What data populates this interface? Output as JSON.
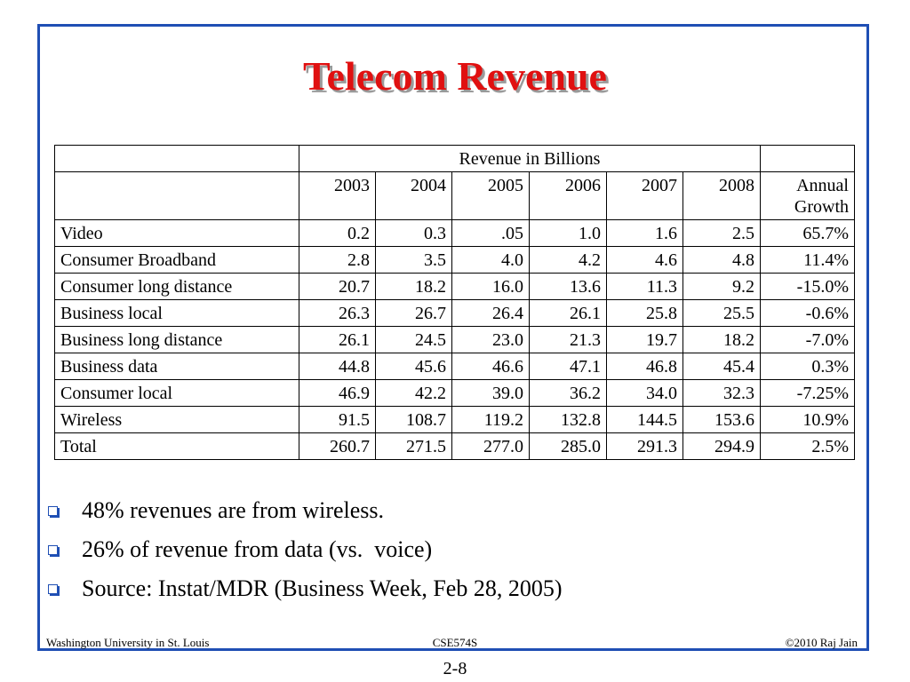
{
  "slide": {
    "title": "Telecom Revenue"
  },
  "table": {
    "group_header": "Revenue in Billions",
    "years": [
      "2003",
      "2004",
      "2005",
      "2006",
      "2007",
      "2008"
    ],
    "growth_header_line1": "Annual",
    "growth_header_line2": "Growth",
    "rows": [
      {
        "label": "Video",
        "values": [
          "0.2",
          "0.3",
          ".05",
          "1.0",
          "1.6",
          "2.5"
        ],
        "growth": "65.7%"
      },
      {
        "label": "Consumer Broadband",
        "values": [
          "2.8",
          "3.5",
          "4.0",
          "4.2",
          "4.6",
          "4.8"
        ],
        "growth": "11.4%"
      },
      {
        "label": "Consumer long distance",
        "values": [
          "20.7",
          "18.2",
          "16.0",
          "13.6",
          "11.3",
          "9.2"
        ],
        "growth": "-15.0%"
      },
      {
        "label": "Business local",
        "values": [
          "26.3",
          "26.7",
          "26.4",
          "26.1",
          "25.8",
          "25.5"
        ],
        "growth": "-0.6%"
      },
      {
        "label": "Business long distance",
        "values": [
          "26.1",
          "24.5",
          "23.0",
          "21.3",
          "19.7",
          "18.2"
        ],
        "growth": "-7.0%"
      },
      {
        "label": "Business data",
        "values": [
          "44.8",
          "45.6",
          "46.6",
          "47.1",
          "46.8",
          "45.4"
        ],
        "growth": "0.3%"
      },
      {
        "label": "Consumer local",
        "values": [
          "46.9",
          "42.2",
          "39.0",
          "36.2",
          "34.0",
          "32.3"
        ],
        "growth": "-7.25%"
      },
      {
        "label": "Wireless",
        "values": [
          "91.5",
          "108.7",
          "119.2",
          "132.8",
          "144.5",
          "153.6"
        ],
        "growth": "10.9%"
      },
      {
        "label": "Total",
        "values": [
          "260.7",
          "271.5",
          "277.0",
          "285.0",
          "291.3",
          "294.9"
        ],
        "growth": "2.5%"
      }
    ]
  },
  "bullets": [
    "48% revenues are from wireless.",
    "26% of revenue from data (vs.  voice)",
    "Source: Instat/MDR (Business Week, Feb 28, 2005)"
  ],
  "footer": {
    "left": "Washington University in St. Louis",
    "center": "CSE574S",
    "right": "©2010 Raj Jain"
  },
  "page_number": "2-8",
  "colors": {
    "title": "#e01010",
    "frame": "#1f4fb4",
    "bullet": "#1f4fb4"
  },
  "icons": {
    "bullet": "hollow-square-bullet-icon"
  }
}
